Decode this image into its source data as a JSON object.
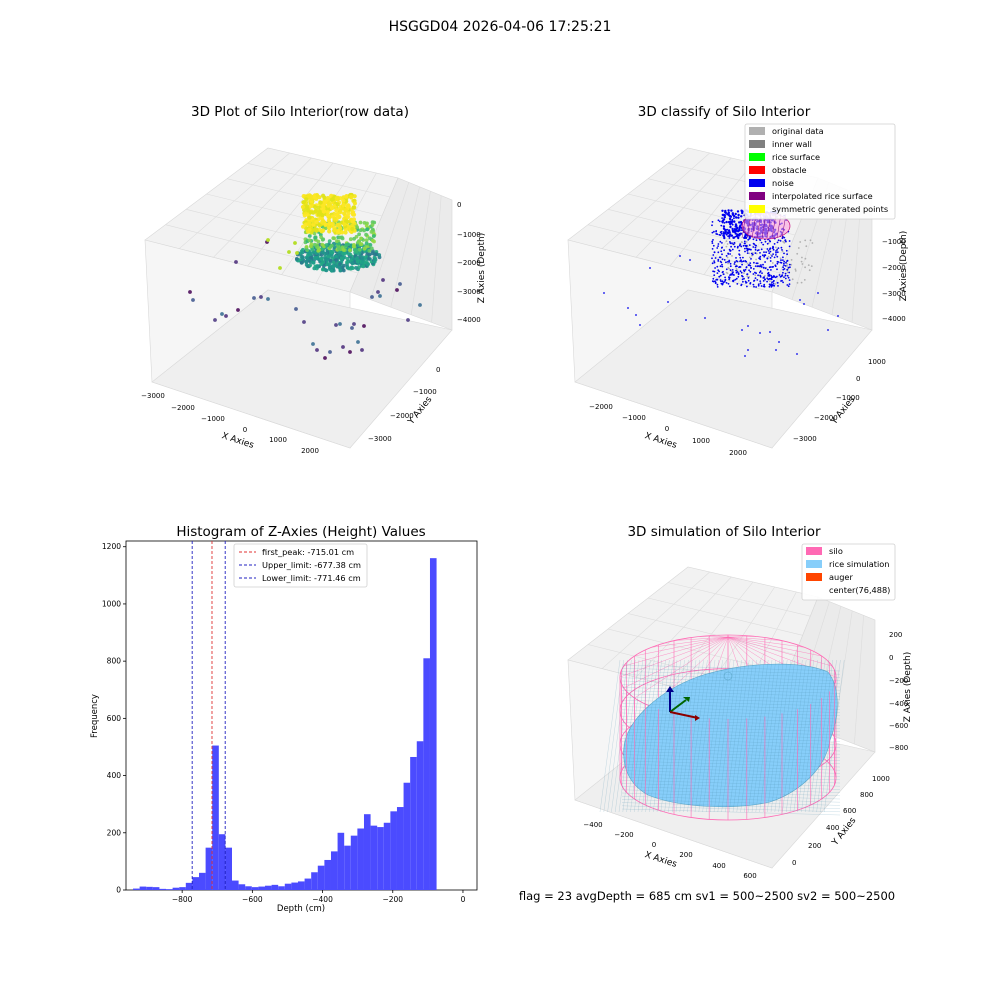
{
  "figure": {
    "suptitle": "HSGGD04 2026-04-06 17:25:21",
    "footer": "flag = 23   avgDepth = 685 cm  sv1 = 500~2500  sv2 = 500~2500"
  },
  "colors": {
    "hist_bar": "#4b4bff",
    "peak_line": "#e03030",
    "limit_line": "#2020c0",
    "original_data": "#b0b0b0",
    "inner_wall": "#808080",
    "rice_surface": "#00ff00",
    "obstacle": "#ff0000",
    "noise": "#0000ee",
    "interpolated_rice_surface": "#800080",
    "symmetric_generated_points": "#ffff00",
    "silo": "#ff69b4",
    "rice_simulation": "#87cefa",
    "auger": "#ff4500"
  },
  "chart_data": [
    {
      "type": "scatter",
      "projection": "3d",
      "title": "3D Plot of Silo Interior(row data)",
      "xlabel": "X Axies",
      "ylabel": "Y Axies",
      "zlabel": "Z Axies (Depth)",
      "xticks": [
        "−3000",
        "−2000",
        "−1000",
        "0",
        "1000",
        "2000"
      ],
      "yticks": [
        "−3000",
        "−2000",
        "−1000",
        "0"
      ],
      "zticks": [
        "0",
        "−1000",
        "−2000",
        "−3000",
        "−4000"
      ],
      "xlim": [
        -3000,
        2500
      ],
      "ylim": [
        -3500,
        500
      ],
      "zlim": [
        -4500,
        200
      ],
      "colormap": "viridis",
      "grid": true
    },
    {
      "type": "scatter",
      "projection": "3d",
      "title": "3D classify of Silo Interior",
      "xlabel": "X Axies",
      "ylabel": "Y Axies",
      "zlabel": "Z Axies (Depth)",
      "xticks": [
        "−2000",
        "−1000",
        "0",
        "1000",
        "2000"
      ],
      "yticks": [
        "−3000",
        "−2000",
        "−1000",
        "0",
        "1000"
      ],
      "zticks": [
        "−1000",
        "−2000",
        "−3000",
        "−4000"
      ],
      "legend_position": "top-right",
      "legend": [
        "original data",
        "inner wall",
        "rice surface",
        "obstacle",
        "noise",
        "interpolated rice surface",
        "symmetric generated points"
      ],
      "grid": true
    },
    {
      "type": "bar",
      "title": "Histogram of Z-Axies (Height) Values",
      "xlabel": "Depth (cm)",
      "ylabel": "Frequency",
      "xlim": [
        -960,
        40
      ],
      "ylim": [
        0,
        1220
      ],
      "xticks": [
        -800,
        -600,
        -400,
        -200,
        0
      ],
      "xtick_labels": [
        "−800",
        "−600",
        "−400",
        "−200",
        "0"
      ],
      "yticks": [
        0,
        200,
        400,
        600,
        800,
        1000,
        1200
      ],
      "bin_width": 18.8,
      "bin_start": -940,
      "values": [
        5,
        12,
        11,
        10,
        4,
        3,
        8,
        10,
        25,
        45,
        60,
        148,
        505,
        195,
        148,
        33,
        20,
        13,
        10,
        12,
        15,
        18,
        13,
        22,
        26,
        30,
        40,
        62,
        85,
        105,
        135,
        200,
        155,
        190,
        215,
        265,
        225,
        220,
        235,
        275,
        290,
        375,
        465,
        520,
        810,
        1160
      ],
      "vlines": [
        {
          "name": "first_peak: -715.01 cm",
          "x": -715.01,
          "color": "red"
        },
        {
          "name": "Upper_limit: -677.38 cm",
          "x": -677.38,
          "color": "blue"
        },
        {
          "name": "Lower_limit: -771.46 cm",
          "x": -771.46,
          "color": "blue"
        }
      ],
      "legend_position": "top-left"
    },
    {
      "type": "scatter",
      "projection": "3d",
      "title": "3D simulation of Silo Interior",
      "xlabel": "X Axies",
      "ylabel": "Y Axies",
      "zlabel": "Z Axies (Depth)",
      "xticks": [
        "−400",
        "−200",
        "0",
        "200",
        "400",
        "600"
      ],
      "yticks": [
        "0",
        "200",
        "400",
        "600",
        "800",
        "1000"
      ],
      "zticks": [
        "200",
        "0",
        "−200",
        "−400",
        "−600",
        "−800"
      ],
      "legend_position": "top-right",
      "legend": [
        "silo",
        "rice simulation",
        "auger",
        "center(76,488)"
      ],
      "grid": true
    }
  ]
}
